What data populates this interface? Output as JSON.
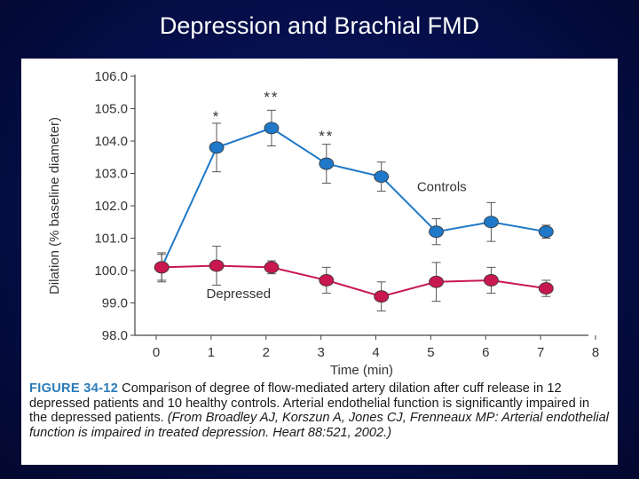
{
  "slide": {
    "title": "Depression and Brachial FMD"
  },
  "chart_data": {
    "type": "line",
    "xlabel": "Time (min)",
    "ylabel": "Dilation (% baseline diameter)",
    "xlim": [
      0,
      8
    ],
    "ylim": [
      98.0,
      106.0
    ],
    "xticks": [
      "0",
      "1",
      "2",
      "3",
      "4",
      "5",
      "6",
      "7",
      "8"
    ],
    "yticks": [
      "98.0",
      "99.0",
      "100.0",
      "101.0",
      "102.0",
      "103.0",
      "104.0",
      "105.0",
      "106.0"
    ],
    "series": [
      {
        "name": "Controls",
        "color": "#1f78c8",
        "x": [
          0.1,
          1.1,
          2.1,
          3.1,
          4.1,
          5.1,
          6.1,
          7.1
        ],
        "y": [
          100.1,
          103.8,
          104.4,
          103.3,
          102.9,
          101.2,
          101.5,
          101.2
        ],
        "err": [
          0.45,
          0.75,
          0.55,
          0.6,
          0.45,
          0.4,
          0.6,
          0.2
        ],
        "label_text": "Controls"
      },
      {
        "name": "Depressed",
        "color": "#c8184f",
        "x": [
          0.1,
          1.1,
          2.1,
          3.1,
          4.1,
          5.1,
          6.1,
          7.1
        ],
        "y": [
          100.1,
          100.15,
          100.1,
          99.7,
          99.2,
          99.65,
          99.7,
          99.45
        ],
        "err": [
          0.4,
          0.6,
          0.2,
          0.4,
          0.45,
          0.6,
          0.4,
          0.25
        ],
        "label_text": "Depressed"
      }
    ],
    "annotations": [
      {
        "text": "*",
        "x": 1.1,
        "y": 104.6
      },
      {
        "text": "**",
        "x": 2.1,
        "y": 105.2
      },
      {
        "text": "**",
        "x": 3.1,
        "y": 104.0
      }
    ]
  },
  "caption": {
    "figure_label": "FIGURE 34-12",
    "body": " Comparison of degree of flow-mediated artery dilation after cuff release in 12 depressed patients and 10 healthy controls. Arterial endothelial function is significantly impaired in the depressed patients. ",
    "citation": "(From Broadley AJ, Korszun A, Jones CJ, Frenneaux MP: Arterial endothelial function is impaired in treated depression. Heart 88:521, 2002.)"
  }
}
